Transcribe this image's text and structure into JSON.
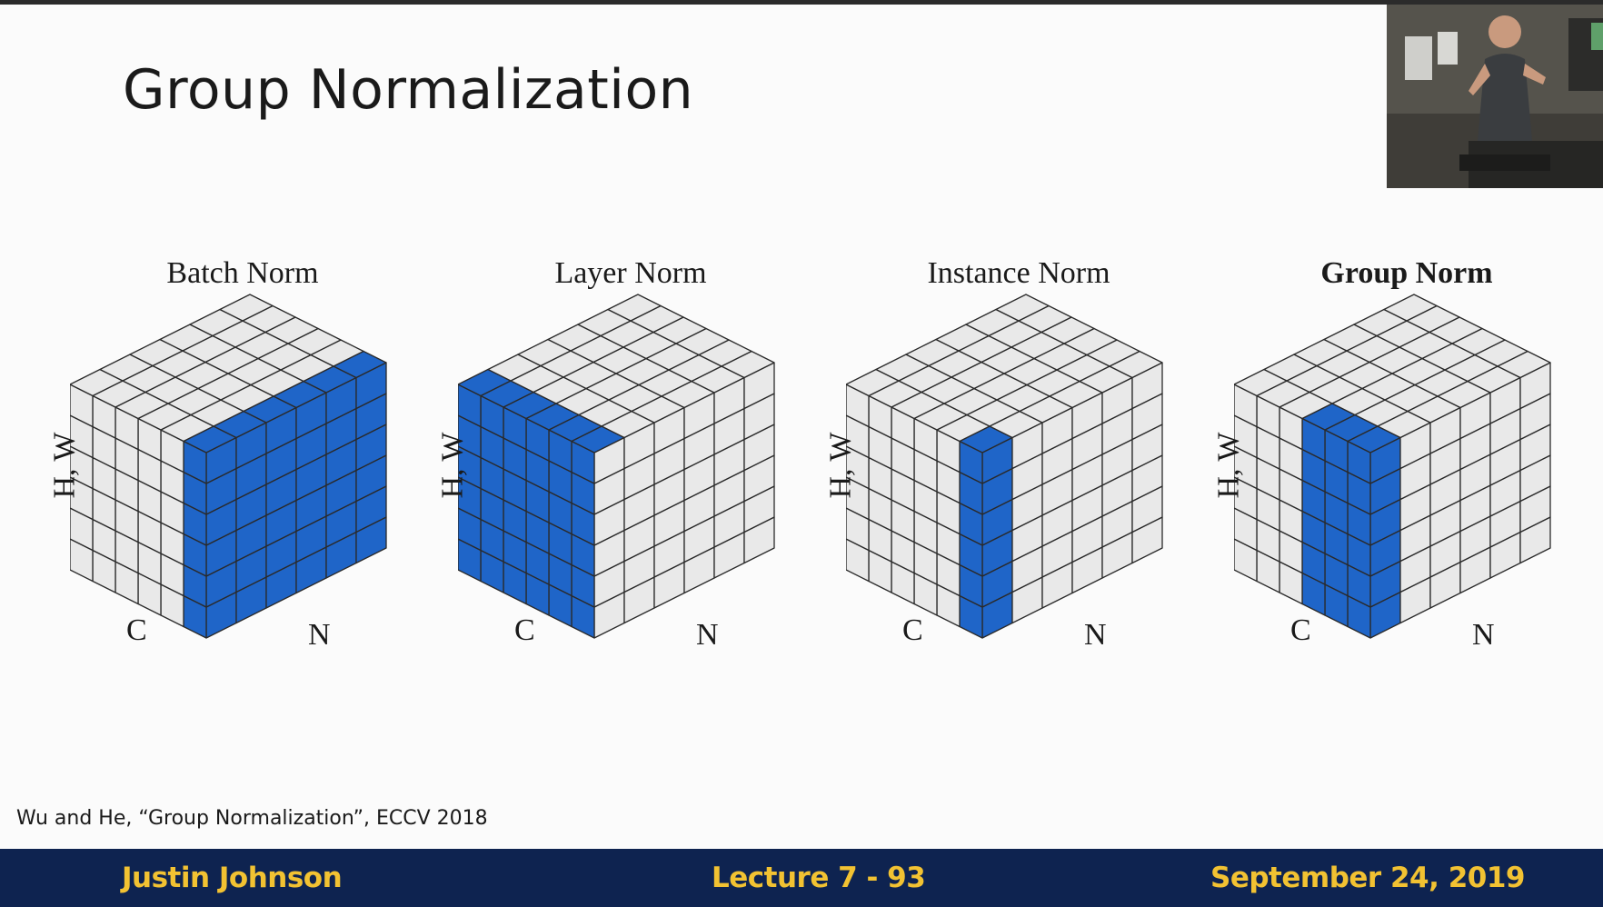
{
  "slide": {
    "title": "Group Normalization",
    "citation": "Wu and He, “Group Normalization”, ECCV 2018"
  },
  "panels": [
    {
      "title": "Batch Norm",
      "bold": false,
      "highlight": "batch",
      "labels": {
        "hw": "H, W",
        "c": "C",
        "n": "N"
      }
    },
    {
      "title": "Layer Norm",
      "bold": false,
      "highlight": "layer",
      "labels": {
        "hw": "H, W",
        "c": "C",
        "n": "N"
      }
    },
    {
      "title": "Instance Norm",
      "bold": false,
      "highlight": "instance",
      "labels": {
        "hw": "H, W",
        "c": "C",
        "n": "N"
      }
    },
    {
      "title": "Group Norm",
      "bold": true,
      "highlight": "group",
      "labels": {
        "hw": "H, W",
        "c": "C",
        "n": "N"
      }
    }
  ],
  "colors": {
    "highlight": "#1f65c8",
    "cell": "#e9e9e9",
    "grid": "#2a2a2a",
    "footer_bg": "#0e2350",
    "footer_text": "#f2c232"
  },
  "footer": {
    "left": "Justin Johnson",
    "center": "Lecture 7 - 93",
    "right": "September 24, 2019"
  },
  "video_overlay": {
    "description_icon": "presenter-video-icon"
  }
}
